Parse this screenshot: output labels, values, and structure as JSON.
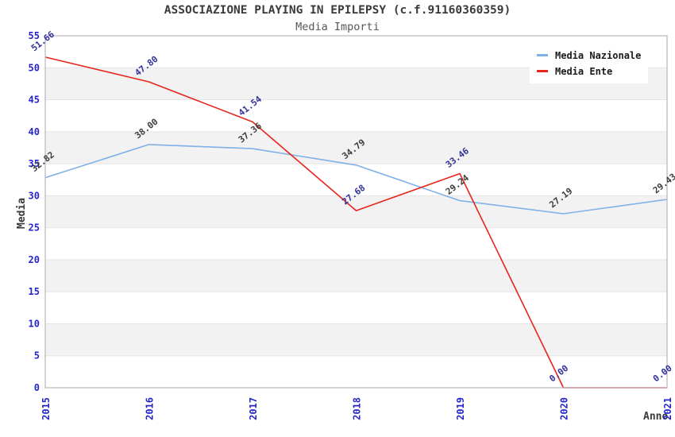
{
  "chart_data": {
    "type": "line",
    "title": "ASSOCIAZIONE PLAYING IN EPILEPSY (c.f.91160360359)",
    "subtitle": "Media Importi",
    "xlabel": "Anno",
    "ylabel": "Media",
    "x": [
      "2015",
      "2016",
      "2017",
      "2018",
      "2019",
      "2020",
      "2021"
    ],
    "ylim": [
      0,
      55
    ],
    "ytick_step": 5,
    "grid": "horizontal-gridlines-with-alternating-bands",
    "legend_position": "top-right",
    "series": [
      {
        "name": "Media Nazionale",
        "color": "#7db1e8",
        "label_color": "#3c3c3c",
        "values": [
          32.82,
          38.0,
          37.36,
          34.79,
          29.24,
          27.19,
          29.43
        ]
      },
      {
        "name": "Media Ente",
        "color": "#e6251c",
        "label_color": "#32329b",
        "values": [
          51.66,
          47.8,
          41.54,
          27.68,
          33.46,
          0.0,
          0.0
        ]
      }
    ],
    "colors": {
      "tick_label": "#2525cb",
      "band": "#f2f2f2",
      "gridline": "#e4e4e4",
      "border": "#bdbdbd",
      "title": "#3a3a3a",
      "subtitle": "#575757",
      "axis_title": "#3a3a3a",
      "background": "#ffffff"
    }
  }
}
